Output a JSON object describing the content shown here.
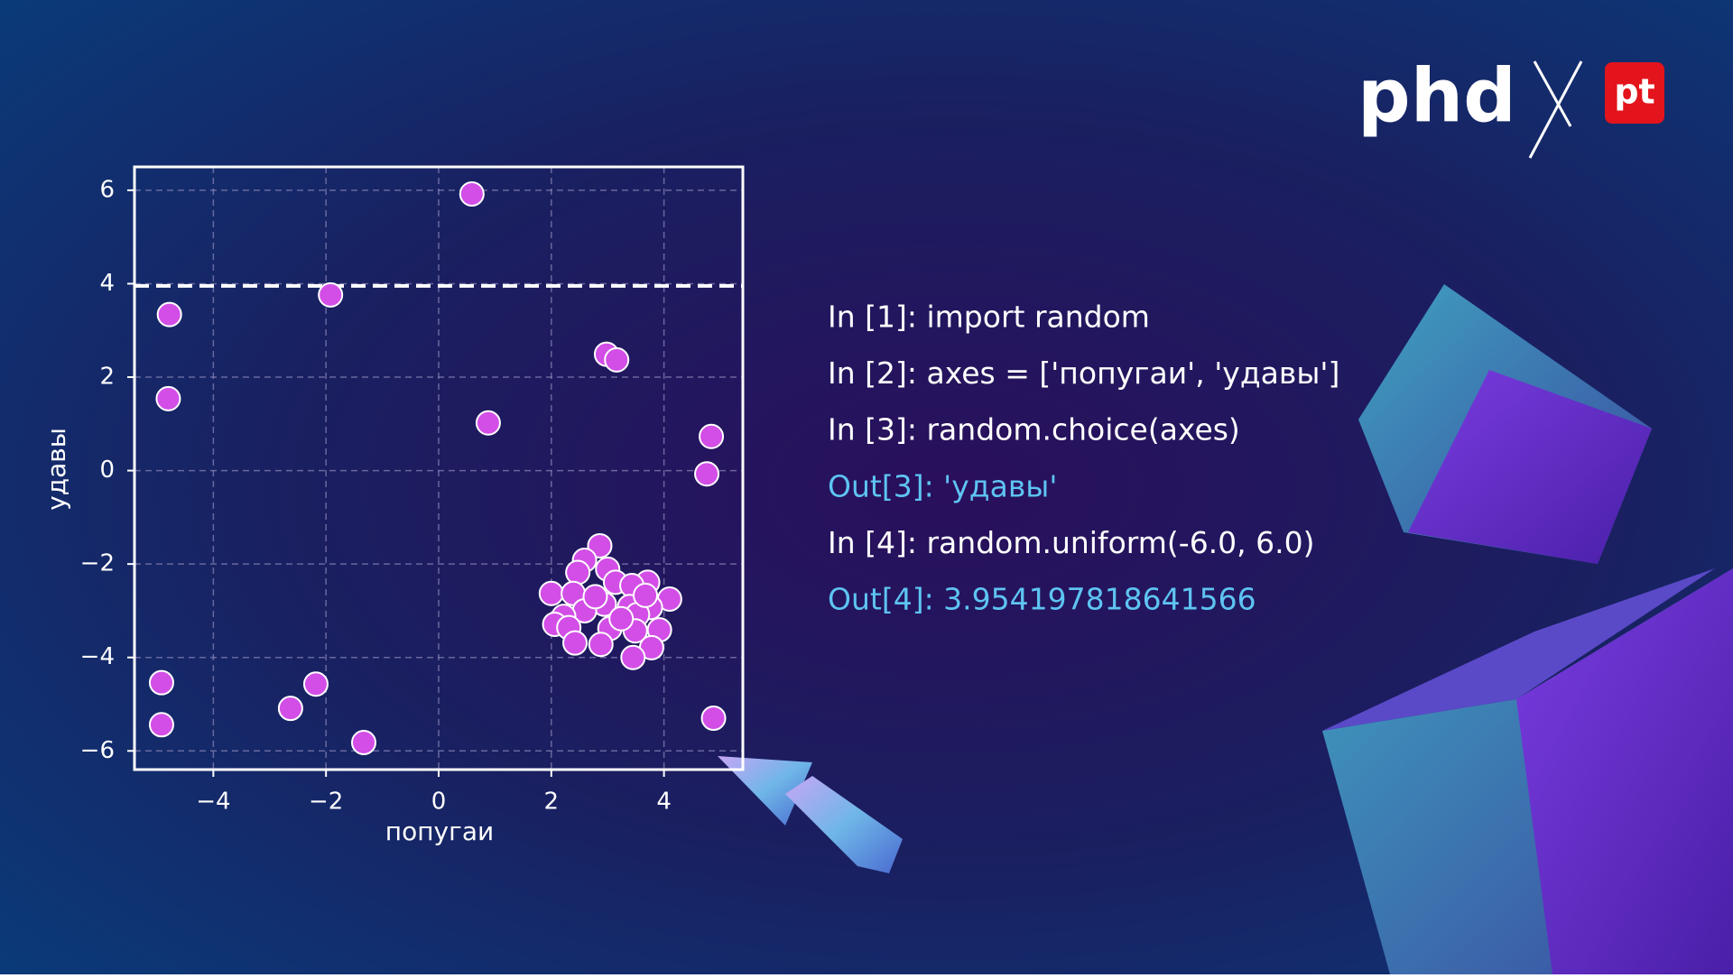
{
  "chart_data": {
    "type": "scatter",
    "xlabel": "попугаи",
    "ylabel": "удавы",
    "xlim": [
      -5.4,
      5.4
    ],
    "ylim": [
      -6.4,
      6.5
    ],
    "xticks": [
      {
        "value": -4,
        "label": "−4"
      },
      {
        "value": -2,
        "label": "−2"
      },
      0,
      2,
      4
    ],
    "yticks": [
      {
        "value": -6,
        "label": "−6"
      },
      {
        "value": -4,
        "label": "−4"
      },
      {
        "value": -2,
        "label": "−2"
      },
      0,
      2,
      4,
      6
    ],
    "grid": true,
    "color": "#d24ee6",
    "hline": 3.954197818641566,
    "x": [
      0.59,
      -4.78,
      -1.92,
      -4.8,
      2.98,
      3.16,
      0.88,
      4.84,
      4.76,
      -4.92,
      -4.92,
      -2.63,
      -2.18,
      -1.33,
      4.88,
      2.86,
      2.59,
      3.0,
      2.47,
      3.14,
      3.71,
      2.0,
      2.39,
      3.43,
      4.1,
      2.94,
      3.39,
      3.76,
      2.59,
      2.22,
      2.06,
      2.31,
      3.04,
      3.53,
      3.92,
      3.49,
      2.88,
      2.42,
      3.78,
      3.45,
      2.78,
      3.24,
      3.67
    ],
    "values": [
      5.92,
      3.34,
      3.76,
      1.54,
      2.49,
      2.37,
      1.02,
      0.73,
      -0.07,
      -4.54,
      -5.44,
      -5.09,
      -4.57,
      -5.82,
      -5.3,
      -1.61,
      -1.92,
      -2.11,
      -2.18,
      -2.39,
      -2.39,
      -2.63,
      -2.63,
      -2.46,
      -2.75,
      -2.86,
      -2.91,
      -2.93,
      -3.0,
      -3.12,
      -3.29,
      -3.36,
      -3.38,
      -3.08,
      -3.41,
      -3.43,
      -3.72,
      -3.69,
      -3.79,
      -4.0,
      -2.7,
      -3.17,
      -2.67
    ]
  },
  "code": [
    {
      "text": "In [1]: import random",
      "color": "#ffffff"
    },
    {
      "text": "In [2]: axes = ['попугаи', 'удавы']",
      "color": "#ffffff"
    },
    {
      "text": "In [3]: random.choice(axes)",
      "color": "#ffffff"
    },
    {
      "text": "Out[3]: 'удавы'",
      "color": "#5ec4f2"
    },
    {
      "text": "In [4]: random.uniform(-6.0, 6.0)",
      "color": "#ffffff"
    },
    {
      "text": "Out[4]: 3.954197818641566",
      "color": "#5ec4f2"
    }
  ],
  "logo": {
    "left": "phd",
    "right": "pt"
  }
}
